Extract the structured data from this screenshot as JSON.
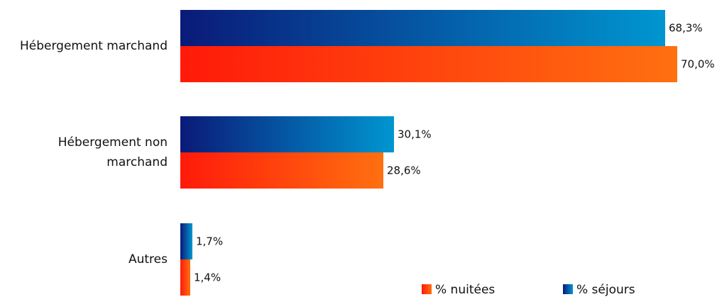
{
  "chart_data": {
    "type": "bar",
    "orientation": "horizontal",
    "categories": [
      [
        "Hébergement marchand"
      ],
      [
        "Hébergement non",
        "marchand"
      ],
      [
        "Autres"
      ]
    ],
    "series": [
      {
        "name": "% séjours",
        "values": [
          68.3,
          30.1,
          1.7
        ],
        "labels": [
          "68,3%",
          "30,1%",
          "1,7%"
        ],
        "colors": [
          "#0a1a78",
          "#0096d0"
        ]
      },
      {
        "name": "% nuitées",
        "values": [
          70.0,
          28.6,
          1.4
        ],
        "labels": [
          "70,0%",
          "28,6%",
          "1,4%"
        ],
        "colors": [
          "#ff1a0a",
          "#ff7010"
        ]
      }
    ],
    "legend": {
      "placement": "bottom-right",
      "order": [
        "% nuitées",
        "% séjours"
      ]
    },
    "xlim": [
      0,
      100
    ],
    "grid": false
  }
}
